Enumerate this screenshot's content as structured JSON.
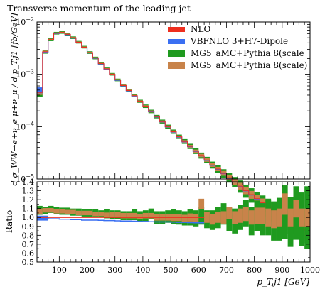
{
  "chart_data": {
    "type": "step",
    "title": "Transverse momentum of the leading jet",
    "xlabel": "p_T,j1 [GeV]",
    "ylabel": "d σ_WW→e+ν_e μ+ν_μ / d p_T,j1 [fb/GeV]",
    "xlim": [
      20,
      1000
    ],
    "xticks": [
      100,
      200,
      300,
      400,
      500,
      600,
      700,
      800,
      900,
      1000
    ],
    "yscale": "log",
    "ylim": [
      1e-05,
      0.01
    ],
    "yticks": [
      {
        "value": 0.01,
        "base": "10",
        "exp": "−2"
      },
      {
        "value": 0.001,
        "base": "10",
        "exp": "−3"
      },
      {
        "value": 0.0001,
        "base": "10",
        "exp": "−4"
      },
      {
        "value": 1e-05,
        "base": "10",
        "exp": "−5"
      }
    ],
    "legend_position": "top-right",
    "series": [
      {
        "name": "NLO",
        "color": "#ee2e1e"
      },
      {
        "name": "VBFNLO 3+H7-Dipole",
        "color": "#3a6ff2"
      },
      {
        "name": "MG5_aMC+Pythia 8(scale",
        "color": "#1f9a1f"
      },
      {
        "name": "MG5_aMC+Pythia 8(scale)",
        "color": "#c8834a"
      }
    ],
    "x_bins": [
      20,
      40,
      60,
      80,
      100,
      120,
      140,
      160,
      180,
      200,
      220,
      240,
      260,
      280,
      300,
      320,
      340,
      360,
      380,
      400,
      420,
      440,
      460,
      480,
      500,
      520,
      540,
      560,
      580,
      600,
      620,
      640,
      660,
      680,
      700,
      720,
      740,
      760,
      780,
      800,
      820,
      840,
      860,
      880,
      900,
      920,
      940,
      960,
      980,
      1000
    ],
    "main_values": [
      0.00045,
      0.0027,
      0.0046,
      0.0061,
      0.0063,
      0.0058,
      0.005,
      0.0041,
      0.0033,
      0.0026,
      0.00205,
      0.0016,
      0.00127,
      0.001,
      0.00078,
      0.00061,
      0.00049,
      0.00039,
      0.000305,
      0.000245,
      0.000195,
      0.000155,
      0.000125,
      0.0001,
      8e-05,
      6.4e-05,
      5.2e-05,
      4.2e-05,
      3.4e-05,
      2.8e-05,
      2.3e-05,
      1.85e-05,
      1.55e-05,
      1.28e-05,
      1.06e-05,
      8.8e-06,
      7.3e-06,
      6e-06,
      5e-06,
      4.2e-06,
      3.5e-06,
      3e-06,
      2.5e-06,
      2.1e-06,
      1.8e-06,
      1.5e-06,
      1.3e-06,
      1.1e-06,
      1e-06
    ],
    "main_band_halfwidth": [
      0.2,
      0.09,
      0.07,
      0.06,
      0.06,
      0.06,
      0.06,
      0.06,
      0.06,
      0.06,
      0.06,
      0.06,
      0.06,
      0.06,
      0.06,
      0.07,
      0.07,
      0.07,
      0.07,
      0.08,
      0.08,
      0.08,
      0.09,
      0.09,
      0.1,
      0.1,
      0.11,
      0.12,
      0.13,
      0.14,
      0.15,
      0.16,
      0.18,
      0.2,
      0.22,
      0.24,
      0.28,
      0.3,
      0.33,
      0.35,
      0.38,
      0.4,
      0.42,
      0.45,
      0.45,
      0.45,
      0.45,
      0.45,
      0.45
    ],
    "ratio": {
      "ylabel": "Ratio",
      "ylim": [
        0.5,
        1.4
      ],
      "yticks": [
        0.5,
        0.6,
        0.7,
        0.8,
        0.9,
        1.0,
        1.1,
        1.2,
        1.3,
        1.4
      ],
      "reference": 1.0,
      "nlo_band_halfwidth": 0.005,
      "vbfnlo": [
        0.99,
        0.99,
        0.985,
        0.985,
        0.98,
        0.98,
        0.975,
        0.975,
        0.97,
        0.97,
        0.97,
        0.968,
        0.965,
        0.965,
        0.962,
        0.96,
        0.96,
        0.958,
        0.955,
        0.955,
        0.952,
        0.95,
        0.95,
        0.95,
        0.948,
        0.945,
        0.945,
        0.942,
        0.94,
        0.94
      ],
      "mg_green_center": [
        1.08,
        1.08,
        1.09,
        1.08,
        1.07,
        1.07,
        1.06,
        1.06,
        1.05,
        1.05,
        1.05,
        1.04,
        1.04,
        1.03,
        1.03,
        1.02,
        1.02,
        1.03,
        1.01,
        1.02,
        1.04,
        1.0,
        1.0,
        1.01,
        1.01,
        1.0,
        0.99,
        1.0,
        0.99,
        1.02,
        0.98,
        0.97,
        1.0,
        1.04,
        0.98,
        0.96,
        1.0,
        1.05,
        0.96,
        1.02,
        0.98,
        1.0,
        0.96,
        0.98,
        1.06,
        0.95,
        1.05,
        0.98,
        1.0
      ],
      "mg_green_halfwidth": [
        0.05,
        0.04,
        0.04,
        0.04,
        0.04,
        0.04,
        0.04,
        0.04,
        0.04,
        0.04,
        0.04,
        0.04,
        0.05,
        0.05,
        0.05,
        0.05,
        0.05,
        0.06,
        0.06,
        0.06,
        0.06,
        0.07,
        0.07,
        0.07,
        0.08,
        0.08,
        0.08,
        0.09,
        0.09,
        0.1,
        0.1,
        0.11,
        0.12,
        0.12,
        0.13,
        0.14,
        0.14,
        0.15,
        0.16,
        0.17,
        0.18,
        0.2,
        0.22,
        0.24,
        0.3,
        0.28,
        0.3,
        0.3,
        0.35
      ],
      "mg_orange_center": [
        1.07,
        1.08,
        1.08,
        1.07,
        1.07,
        1.06,
        1.06,
        1.05,
        1.05,
        1.05,
        1.04,
        1.04,
        1.03,
        1.03,
        1.03,
        1.02,
        1.02,
        1.02,
        1.01,
        1.02,
        1.02,
        1.0,
        1.0,
        1.0,
        1.0,
        1.0,
        0.99,
        1.0,
        0.99,
        1.15,
        1.0,
        0.98,
        1.0,
        1.0,
        1.05,
        1.0,
        1.02,
        1.04,
        1.0,
        1.02,
        1.02,
        1.0,
        0.98,
        1.0,
        1.15,
        1.0,
        1.1,
        1.0,
        1.0
      ],
      "mg_orange_halfwidth": [
        0.03,
        0.025,
        0.025,
        0.025,
        0.025,
        0.025,
        0.025,
        0.025,
        0.025,
        0.025,
        0.025,
        0.025,
        0.025,
        0.03,
        0.03,
        0.03,
        0.03,
        0.03,
        0.03,
        0.03,
        0.03,
        0.035,
        0.035,
        0.035,
        0.04,
        0.04,
        0.04,
        0.045,
        0.045,
        0.06,
        0.06,
        0.06,
        0.06,
        0.07,
        0.07,
        0.07,
        0.08,
        0.08,
        0.08,
        0.09,
        0.09,
        0.1,
        0.1,
        0.1,
        0.12,
        0.1,
        0.1,
        0.1,
        0.1
      ]
    }
  }
}
